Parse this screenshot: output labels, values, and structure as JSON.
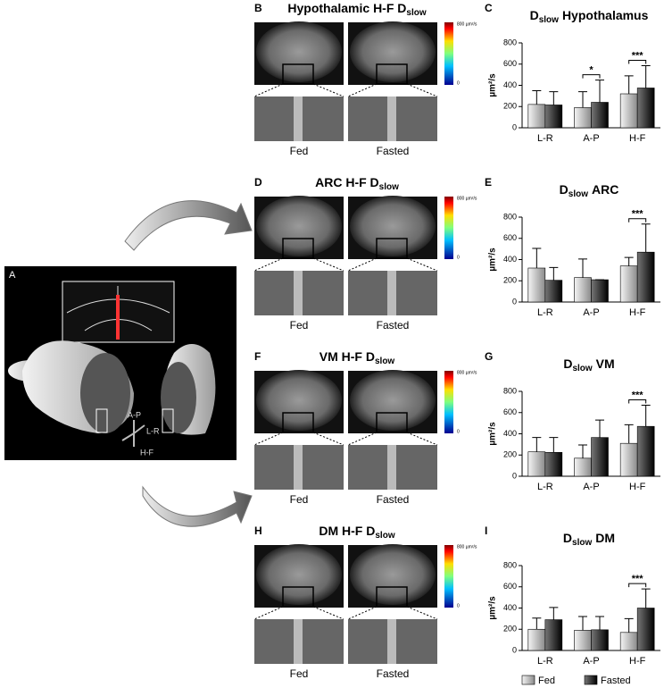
{
  "panel_a": {
    "letter": "A",
    "axes": [
      "A-P",
      "L-R",
      "H-F"
    ]
  },
  "panels": [
    {
      "letter": "B",
      "title": "Hypothalamic H-F D",
      "title_sub": "slow",
      "colorbar_max": "800 µm²/s",
      "colorbar_min": "0",
      "left_label": "Fed",
      "right_label": "Fasted"
    },
    {
      "letter": "D",
      "title": "ARC H-F D",
      "title_sub": "slow",
      "colorbar_max": "800 µm²/s",
      "colorbar_min": "0",
      "left_label": "Fed",
      "right_label": "Fasted"
    },
    {
      "letter": "F",
      "title": "VM H-F D",
      "title_sub": "slow",
      "colorbar_max": "800 µm²/s",
      "colorbar_min": "0",
      "left_label": "Fed",
      "right_label": "Fasted"
    },
    {
      "letter": "H",
      "title": "DM H-F D",
      "title_sub": "slow",
      "colorbar_max": "800 µm²/s",
      "colorbar_min": "0",
      "left_label": "Fed",
      "right_label": "Fasted"
    }
  ],
  "chart_data": [
    {
      "type": "bar",
      "letter": "C",
      "title": "D",
      "title_sub": "slow",
      "title_rest": "Hypothalamus",
      "y_label": "µm²/s",
      "categories": [
        "L-R",
        "A-P",
        "H-F"
      ],
      "significance": [
        null,
        "*",
        "***"
      ],
      "ylim": [
        0,
        800
      ],
      "yticks": [
        0,
        200,
        400,
        600,
        800
      ],
      "series": [
        {
          "name": "Fed",
          "color": "#bdbdbd",
          "values": [
            220,
            190,
            320
          ],
          "errors": [
            130,
            150,
            170
          ]
        },
        {
          "name": "Fasted",
          "color": "#1a1a1a",
          "values": [
            215,
            240,
            375
          ],
          "errors": [
            125,
            210,
            210
          ]
        }
      ]
    },
    {
      "type": "bar",
      "letter": "E",
      "title": "D",
      "title_sub": "slow",
      "title_rest": "ARC",
      "y_label": "µm²/s",
      "categories": [
        "L-R",
        "A-P",
        "H-F"
      ],
      "significance": [
        null,
        null,
        "***"
      ],
      "ylim": [
        0,
        800
      ],
      "yticks": [
        0,
        200,
        400,
        600,
        800
      ],
      "series": [
        {
          "name": "Fed",
          "color": "#bdbdbd",
          "values": [
            320,
            230,
            340
          ],
          "errors": [
            185,
            175,
            80
          ]
        },
        {
          "name": "Fasted",
          "color": "#1a1a1a",
          "values": [
            205,
            210,
            470
          ],
          "errors": [
            120,
            0,
            265
          ]
        }
      ]
    },
    {
      "type": "bar",
      "letter": "G",
      "title": "D",
      "title_sub": "slow",
      "title_rest": "VM",
      "y_label": "µm²/s",
      "categories": [
        "L-R",
        "A-P",
        "H-F"
      ],
      "significance": [
        null,
        null,
        "***"
      ],
      "ylim": [
        0,
        800
      ],
      "yticks": [
        0,
        200,
        400,
        600,
        800
      ],
      "series": [
        {
          "name": "Fed",
          "color": "#bdbdbd",
          "values": [
            230,
            170,
            310
          ],
          "errors": [
            135,
            125,
            175
          ]
        },
        {
          "name": "Fasted",
          "color": "#1a1a1a",
          "values": [
            225,
            365,
            470
          ],
          "errors": [
            140,
            165,
            200
          ]
        }
      ]
    },
    {
      "type": "bar",
      "letter": "I",
      "title": "D",
      "title_sub": "slow",
      "title_rest": "DM",
      "y_label": "µm²/s",
      "categories": [
        "L-R",
        "A-P",
        "H-F"
      ],
      "significance": [
        null,
        null,
        "***"
      ],
      "ylim": [
        0,
        800
      ],
      "yticks": [
        0,
        200,
        400,
        600,
        800
      ],
      "series": [
        {
          "name": "Fed",
          "color": "#bdbdbd",
          "values": [
            200,
            190,
            170
          ],
          "errors": [
            105,
            130,
            130
          ]
        },
        {
          "name": "Fasted",
          "color": "#1a1a1a",
          "values": [
            290,
            195,
            400
          ],
          "errors": [
            115,
            125,
            180
          ]
        }
      ]
    }
  ]
}
